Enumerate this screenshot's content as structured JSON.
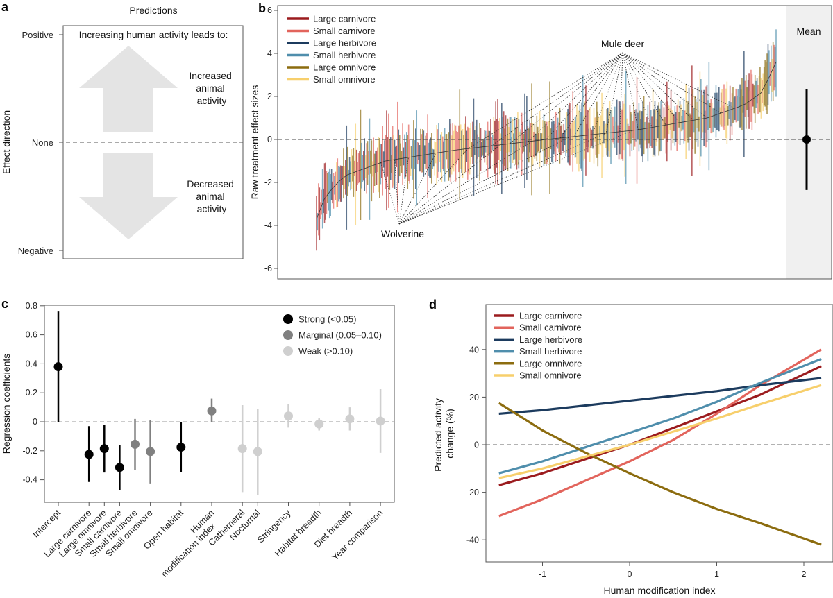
{
  "panel_labels": [
    "a",
    "b",
    "c",
    "d"
  ],
  "colors": {
    "Large carnivore": "#9b1b1e",
    "Small carnivore": "#e2645c",
    "Large herbivore": "#1c3b5e",
    "Small herbivore": "#4f8eac",
    "Large omnivore": "#8c6c0f",
    "Small omnivore": "#f7cf6c",
    "Strong": "#000000",
    "Marginal": "#808080",
    "Weak": "#cfcfcf"
  },
  "chart_data": [
    {
      "panel": "a",
      "type": "diagram",
      "title": "Predictions",
      "ylabel": "Effect direction",
      "yticks": [
        "Positive",
        "None",
        "Negative"
      ],
      "header": "Increasing human activity leads to:",
      "up_label": [
        "Increased",
        "animal",
        "activity"
      ],
      "down_label": [
        "Decreased",
        "animal",
        "activity"
      ]
    },
    {
      "panel": "b",
      "type": "errorbar",
      "ylabel": "Raw treatment effect sizes",
      "ylim": [
        -6.3,
        6.4
      ],
      "yticks": [
        6,
        4,
        2,
        0,
        -2,
        -4,
        -6
      ],
      "reference_line": 0,
      "legend": [
        "Large carnivore",
        "Small carnivore",
        "Large herbivore",
        "Small herbivore",
        "Large omnivore",
        "Small omnivore"
      ],
      "legend_position": "top-left",
      "sorted_effect_trend": {
        "quantile": [
          0,
          0.02,
          0.06,
          0.15,
          0.3,
          0.5,
          0.7,
          0.85,
          0.93,
          0.97,
          1.0
        ],
        "effect": [
          -3.7,
          -2.6,
          -1.7,
          -1.0,
          -0.5,
          0.0,
          0.45,
          1.0,
          1.6,
          2.2,
          3.6
        ]
      },
      "annotations": [
        "Mule deer",
        "Wolverine"
      ],
      "mean_panel": {
        "label": "Mean",
        "mean": 0.0,
        "ci": [
          -2.35,
          2.35
        ]
      }
    },
    {
      "panel": "c",
      "type": "errorbar",
      "ylabel": "Regression coefficients",
      "ylim": [
        -0.56,
        0.8
      ],
      "yticks": [
        0.8,
        0.6,
        0.4,
        0.2,
        0,
        -0.2,
        -0.4
      ],
      "yticklabels": [
        "0.8",
        "0.6",
        "0.4",
        "0.2",
        "0",
        "-0.2",
        "-0.4"
      ],
      "reference_line": 0,
      "legend": [
        {
          "key": "Strong",
          "label": "Strong (<0.05)"
        },
        {
          "key": "Marginal",
          "label": "Marginal (0.05–0.10)"
        },
        {
          "key": "Weak",
          "label": "Weak (>0.10)"
        }
      ],
      "legend_position": "top-right",
      "points": [
        {
          "label": [
            "Intercept"
          ],
          "value": 0.38,
          "ci": [
            0.0,
            0.76
          ],
          "strength": "Strong",
          "pos": 0
        },
        {
          "label": [
            "Large carnivore"
          ],
          "value": -0.225,
          "ci": [
            -0.415,
            -0.03
          ],
          "strength": "Strong",
          "pos": 2
        },
        {
          "label": [
            "Large omnivore"
          ],
          "value": -0.185,
          "ci": [
            -0.35,
            -0.02
          ],
          "strength": "Strong",
          "pos": 3
        },
        {
          "label": [
            "Small carnivore"
          ],
          "value": -0.315,
          "ci": [
            -0.47,
            -0.16
          ],
          "strength": "Strong",
          "pos": 4
        },
        {
          "label": [
            "Small herbivore"
          ],
          "value": -0.155,
          "ci": [
            -0.33,
            0.02
          ],
          "strength": "Marginal",
          "pos": 5
        },
        {
          "label": [
            "Small omnivore"
          ],
          "value": -0.205,
          "ci": [
            -0.425,
            0.01
          ],
          "strength": "Marginal",
          "pos": 6
        },
        {
          "label": [
            "Open habitat"
          ],
          "value": -0.175,
          "ci": [
            -0.345,
            0.0
          ],
          "strength": "Strong",
          "pos": 8
        },
        {
          "label": [
            "Human",
            "modification index"
          ],
          "value": 0.075,
          "ci": [
            0.0,
            0.16
          ],
          "strength": "Marginal",
          "pos": 10
        },
        {
          "label": [
            "Cathemeral"
          ],
          "value": -0.185,
          "ci": [
            -0.485,
            0.115
          ],
          "strength": "Weak",
          "pos": 12
        },
        {
          "label": [
            "Nocturnal"
          ],
          "value": -0.205,
          "ci": [
            -0.505,
            0.09
          ],
          "strength": "Weak",
          "pos": 13
        },
        {
          "label": [
            "Stringency"
          ],
          "value": 0.04,
          "ci": [
            -0.04,
            0.12
          ],
          "strength": "Weak",
          "pos": 15
        },
        {
          "label": [
            "Habitat breadth"
          ],
          "value": -0.015,
          "ci": [
            -0.06,
            0.025
          ],
          "strength": "Weak",
          "pos": 17
        },
        {
          "label": [
            "Diet breadth"
          ],
          "value": 0.02,
          "ci": [
            -0.06,
            0.1
          ],
          "strength": "Weak",
          "pos": 19
        },
        {
          "label": [
            "Year comparison"
          ],
          "value": 0.005,
          "ci": [
            -0.215,
            0.225
          ],
          "strength": "Weak",
          "pos": 21
        }
      ]
    },
    {
      "panel": "d",
      "type": "line",
      "xlabel": "Human modification index",
      "ylabel": [
        "Predicted activity",
        "change (%)"
      ],
      "xlim": [
        -1.65,
        2.33
      ],
      "ylim": [
        -49,
        59
      ],
      "xticks": [
        -1,
        0,
        1,
        2
      ],
      "yticks": [
        40,
        20,
        0,
        -20,
        -40
      ],
      "reference_line": 0,
      "legend_position": "top-left",
      "x": [
        -1.5,
        -1,
        -0.5,
        0,
        0.5,
        1,
        1.5,
        2.2
      ],
      "series": [
        {
          "name": "Large carnivore",
          "values": [
            -17,
            -12,
            -6,
            0,
            7,
            14,
            21,
            33
          ]
        },
        {
          "name": "Small carnivore",
          "values": [
            -30,
            -23,
            -15,
            -7,
            2,
            13,
            25,
            40
          ]
        },
        {
          "name": "Large herbivore",
          "values": [
            13,
            14.5,
            16.5,
            18.5,
            20.5,
            22.5,
            25,
            28
          ]
        },
        {
          "name": "Small herbivore",
          "values": [
            -12,
            -7,
            -1,
            5,
            11,
            18,
            26,
            36
          ]
        },
        {
          "name": "Large omnivore",
          "values": [
            17.5,
            6,
            -3.5,
            -12,
            -20,
            -27,
            -33,
            -42
          ]
        },
        {
          "name": "Small omnivore",
          "values": [
            -14,
            -10,
            -5,
            0,
            5.5,
            11,
            17,
            25
          ]
        }
      ]
    }
  ]
}
